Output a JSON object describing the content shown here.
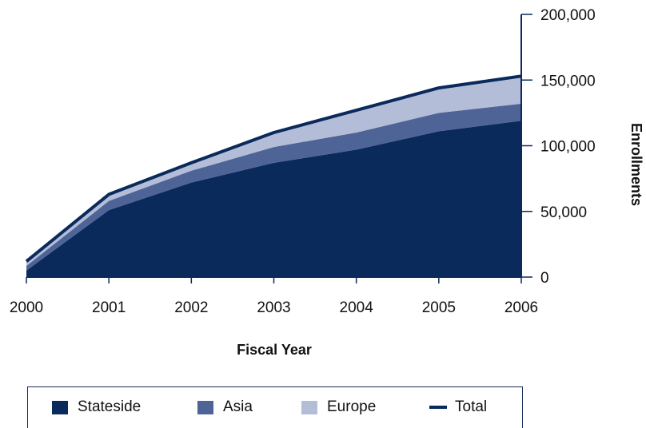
{
  "chart_data": {
    "type": "area",
    "stacked": true,
    "x": [
      "2000",
      "2001",
      "2002",
      "2003",
      "2004",
      "2005",
      "2006"
    ],
    "series": [
      {
        "name": "Stateside",
        "color": "#0a2a5c",
        "values": [
          5000,
          51000,
          72000,
          87000,
          97000,
          111000,
          119000
        ]
      },
      {
        "name": "Asia",
        "color": "#4e6496",
        "values": [
          3500,
          7000,
          9000,
          12000,
          13000,
          14000,
          13000
        ]
      },
      {
        "name": "Europe",
        "color": "#b4bdd8",
        "values": [
          3500,
          5000,
          6000,
          11000,
          17000,
          19000,
          21000
        ]
      }
    ],
    "total": {
      "name": "Total",
      "color": "#0a2a5c",
      "values": [
        12000,
        63000,
        87000,
        110000,
        127000,
        144000,
        153000
      ]
    },
    "ylim": [
      0,
      200000
    ],
    "yticks": [
      0,
      50000,
      100000,
      150000,
      200000
    ],
    "ytick_labels": [
      "0",
      "50,000",
      "100,000",
      "150,000",
      "200,000"
    ],
    "xlabel": "Fiscal Year",
    "ylabel": "Enrollments",
    "y_axis_side": "right",
    "legend_position": "bottom"
  },
  "legend": {
    "stateside": "Stateside",
    "asia": "Asia",
    "europe": "Europe",
    "total": "Total"
  }
}
